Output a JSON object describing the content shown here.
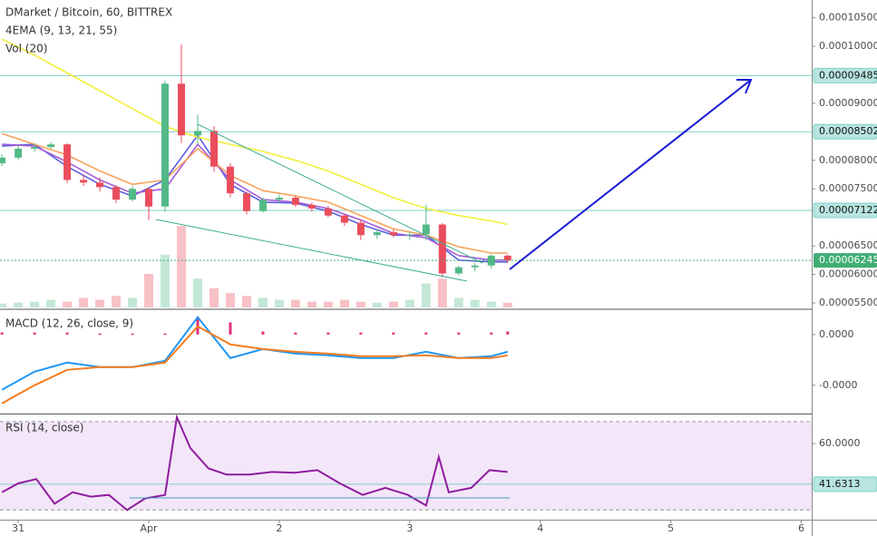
{
  "chart_data": [
    {
      "type": "candlestick",
      "title": "DMarket / Bitcoin, 60, BITTREX",
      "labels": [
        "4EMA (9, 13, 21, 55)",
        "Vol (20)"
      ],
      "xlim": [
        30.86,
        37.08
      ],
      "ylim": [
        5.42e-05,
        0.0001078
      ],
      "yticks": [
        {
          "value": 0.000105,
          "label": "0.00010500"
        },
        {
          "value": 0.0001,
          "label": "0.00010000"
        },
        {
          "value": 9e-05,
          "label": "0.00009000"
        },
        {
          "value": 8e-05,
          "label": "0.00008000"
        },
        {
          "value": 7.5e-05,
          "label": "0.00007500"
        },
        {
          "value": 6.5e-05,
          "label": "0.00006500"
        },
        {
          "value": 6e-05,
          "label": "0.00006000"
        },
        {
          "value": 5.5e-05,
          "label": "0.00005500"
        }
      ],
      "levels": [
        9.485e-05,
        8.502e-05,
        7.122e-05
      ],
      "level_color": "#7fcfc9",
      "last_price": 6.245e-05,
      "last_price_color": "#3fae74",
      "up_color": "#53b987",
      "down_color": "#eb4d5c",
      "x": [
        30.875,
        31,
        31.125,
        31.25,
        31.375,
        31.5,
        31.625,
        31.75,
        31.875,
        32,
        32.125,
        32.25,
        32.375,
        32.5,
        32.625,
        32.75,
        32.875,
        33,
        33.125,
        33.25,
        33.375,
        33.5,
        33.625,
        33.75,
        33.875,
        34,
        34.125,
        34.25,
        34.375,
        34.5,
        34.625,
        34.75
      ],
      "open": [
        7.95e-05,
        8.047e-05,
        8.203e-05,
        8.234e-05,
        8.28e-05,
        7.656e-05,
        7.61e-05,
        7.53e-05,
        7.31e-05,
        7.5e-05,
        7.19e-05,
        9.344e-05,
        8.438e-05,
        8.516e-05,
        7.89e-05,
        7.422e-05,
        7.11e-05,
        7.31e-05,
        7.344e-05,
        7.219e-05,
        7.156e-05,
        7.031e-05,
        6.906e-05,
        6.688e-05,
        6.74e-05,
        6.688e-05,
        6.7e-05,
        6.875e-05,
        6.016e-05,
        6.125e-05,
        6.156e-05,
        6.328e-05
      ],
      "high": [
        8.1e-05,
        8.26e-05,
        8.3e-05,
        8.32e-05,
        8.3e-05,
        7.75e-05,
        7.7e-05,
        7.56e-05,
        7.55e-05,
        7.52e-05,
        9.4e-05,
        0.0001003,
        8.8e-05,
        8.6e-05,
        7.95e-05,
        7.45e-05,
        7.35e-05,
        7.4e-05,
        7.38e-05,
        7.26e-05,
        7.2e-05,
        7.06e-05,
        6.95e-05,
        6.8e-05,
        6.79e-05,
        6.75e-05,
        7.219e-05,
        6.9e-05,
        6.15e-05,
        6.2e-05,
        6.35e-05,
        6.35e-05
      ],
      "low": [
        7.9e-05,
        8e-05,
        8.15e-05,
        8.2e-05,
        7.6e-05,
        7.55e-05,
        7.45e-05,
        7.25e-05,
        7.28e-05,
        6.95e-05,
        7.1e-05,
        8.3e-05,
        8.3e-05,
        7.8e-05,
        7.35e-05,
        7.05e-05,
        7.08e-05,
        7.25e-05,
        7.18e-05,
        7.1e-05,
        7e-05,
        6.85e-05,
        6.6e-05,
        6.62e-05,
        6.65e-05,
        6.6e-05,
        6.6e-05,
        5.95e-05,
        5.98e-05,
        6.05e-05,
        6.1e-05,
        6.2e-05
      ],
      "close": [
        8.047e-05,
        8.203e-05,
        8.234e-05,
        8.28e-05,
        7.656e-05,
        7.61e-05,
        7.53e-05,
        7.31e-05,
        7.5e-05,
        7.19e-05,
        9.344e-05,
        8.438e-05,
        8.516e-05,
        7.89e-05,
        7.422e-05,
        7.11e-05,
        7.31e-05,
        7.344e-05,
        7.219e-05,
        7.156e-05,
        7.031e-05,
        6.906e-05,
        6.688e-05,
        6.74e-05,
        6.688e-05,
        6.7e-05,
        6.875e-05,
        6.016e-05,
        6.125e-05,
        6.156e-05,
        6.328e-05,
        6.245e-05
      ],
      "volume": [
        4,
        5,
        6,
        8,
        6,
        10,
        8,
        12,
        10,
        35,
        55,
        85,
        30,
        20,
        15,
        12,
        10,
        8,
        8,
        6,
        6,
        8,
        6,
        5,
        6,
        8,
        25,
        30,
        10,
        8,
        6,
        5
      ],
      "overlays": {
        "x": [
          30.875,
          31.125,
          31.375,
          31.625,
          31.875,
          32.125,
          32.375,
          32.625,
          32.875,
          33.125,
          33.375,
          33.625,
          33.875,
          34.125,
          34.375,
          34.625,
          34.75
        ],
        "series": [
          {
            "color": "#5b5fe0",
            "values": [
              8.25e-05,
              8.281e-05,
              7.891e-05,
              7.578e-05,
              7.375e-05,
              7.656e-05,
              8.438e-05,
              7.578e-05,
              7.266e-05,
              7.25e-05,
              7.109e-05,
              6.875e-05,
              6.688e-05,
              6.688e-05,
              6.25e-05,
              6.219e-05,
              6.219e-05
            ]
          },
          {
            "color": "#a55bd6",
            "values": [
              8.281e-05,
              8.25e-05,
              7.969e-05,
              7.656e-05,
              7.422e-05,
              7.5e-05,
              8.281e-05,
              7.656e-05,
              7.313e-05,
              7.266e-05,
              7.156e-05,
              6.953e-05,
              6.719e-05,
              6.641e-05,
              6.328e-05,
              6.25e-05,
              6.25e-05
            ]
          },
          {
            "color": "#f7a35c",
            "values": [
              8.469e-05,
              8.281e-05,
              8.094e-05,
              7.813e-05,
              7.578e-05,
              7.656e-05,
              8.203e-05,
              7.734e-05,
              7.469e-05,
              7.375e-05,
              7.266e-05,
              7.031e-05,
              6.797e-05,
              6.688e-05,
              6.484e-05,
              6.375e-05,
              6.375e-05
            ]
          },
          {
            "color": "#f2ef3a",
            "values": [
              0.00010125,
              9.844e-05,
              9.531e-05,
              9.219e-05,
              8.906e-05,
              8.594e-05,
              8.406e-05,
              8.281e-05,
              8.156e-05,
              8e-05,
              7.813e-05,
              7.578e-05,
              7.344e-05,
              7.156e-05,
              7.031e-05,
              6.938e-05,
              6.875e-05
            ]
          }
        ]
      }
    },
    {
      "type": "line",
      "title": "MACD (12, 26, close, 9)",
      "xlim": [
        30.86,
        37.08
      ],
      "ylim": [
        -7.7e-07,
        2.4e-07
      ],
      "yticks": [
        {
          "value": 0,
          "label": "0.0000"
        },
        {
          "value": -5e-07,
          "label": "-0.0000"
        }
      ],
      "x": [
        30.875,
        31.125,
        31.375,
        31.625,
        31.875,
        32.125,
        32.375,
        32.625,
        32.875,
        33.125,
        33.375,
        33.625,
        33.875,
        34.125,
        34.375,
        34.625,
        34.75
      ],
      "histogram": {
        "color": "#e0317d",
        "values": [
          2e-08,
          2e-08,
          2e-08,
          1e-08,
          1e-08,
          1e-08,
          1.7e-07,
          1.2e-07,
          3e-08,
          2e-08,
          2e-08,
          2e-08,
          2e-08,
          2e-08,
          2e-08,
          2e-08,
          3e-08
        ]
      },
      "series": [
        {
          "color": "#2196f3",
          "values": [
            -5.45e-07,
            -3.66e-07,
            -2.77e-07,
            -3.21e-07,
            -3.21e-07,
            -2.59e-07,
            1.7e-07,
            -2.32e-07,
            -1.43e-07,
            -1.88e-07,
            -2.05e-07,
            -2.32e-07,
            -2.32e-07,
            -1.7e-07,
            -2.32e-07,
            -2.14e-07,
            -1.7e-07
          ]
        },
        {
          "color": "#f57c1f",
          "values": [
            -6.79e-07,
            -5e-07,
            -3.48e-07,
            -3.21e-07,
            -3.21e-07,
            -2.77e-07,
            8e-08,
            -9.8e-08,
            -1.43e-07,
            -1.7e-07,
            -1.88e-07,
            -2.14e-07,
            -2.14e-07,
            -2.05e-07,
            -2.32e-07,
            -2.32e-07,
            -2.05e-07
          ]
        }
      ]
    },
    {
      "type": "line",
      "title": "RSI (14, close)",
      "xlim": [
        30.86,
        37.08
      ],
      "ylim": [
        26,
        72.8
      ],
      "yticks": [
        {
          "value": 60,
          "label": "60.0000"
        }
      ],
      "levels": [
        41.6313
      ],
      "level_color": "#7fcfc9",
      "band": [
        30,
        70
      ],
      "band_color": "#f3e6f8",
      "xticks": [
        31,
        {
          "value": 32,
          "label": "Apr"
        },
        {
          "value": 33,
          "label": "2"
        },
        {
          "value": 34,
          "label": "3"
        },
        {
          "value": 35,
          "label": "4"
        },
        {
          "value": 36,
          "label": "5"
        },
        {
          "value": 37,
          "label": "6"
        }
      ],
      "x": [
        30.875,
        31,
        31.139,
        31.278,
        31.417,
        31.556,
        31.694,
        31.833,
        31.972,
        32.125,
        32.215,
        32.319,
        32.458,
        32.597,
        32.771,
        32.944,
        33.118,
        33.292,
        33.465,
        33.639,
        33.813,
        33.986,
        34.125,
        34.222,
        34.299,
        34.472,
        34.611,
        34.75
      ],
      "series": [
        {
          "color": "#8e1c9e",
          "values": [
            38,
            42,
            44,
            32.8,
            38,
            36,
            36.8,
            30,
            35.2,
            36.8,
            72,
            58,
            48.8,
            46,
            46,
            47.2,
            46.8,
            48,
            42,
            36.8,
            40,
            36.8,
            32,
            54,
            38,
            40,
            48,
            47.2
          ]
        }
      ]
    }
  ]
}
